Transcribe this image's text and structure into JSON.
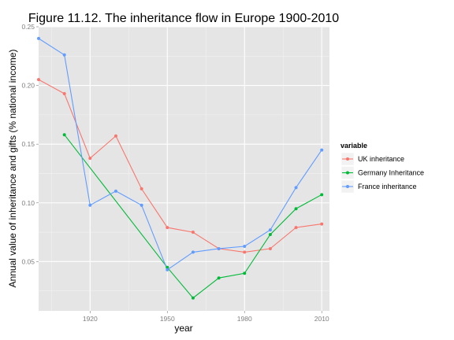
{
  "chart_data": {
    "type": "line",
    "title": "Figure 11.12. The inheritance flow in Europe 1900-2010",
    "xlabel": "year",
    "ylabel": "Annual value of inheritance and gifts (% national income)",
    "xlim": [
      1900,
      2013
    ],
    "ylim": [
      0.008,
      0.25
    ],
    "x_ticks": [
      1920,
      1950,
      1980,
      2010
    ],
    "y_ticks": [
      0.05,
      0.1,
      0.15,
      0.2,
      0.25
    ],
    "y_tick_labels": [
      "0.05",
      "0.10",
      "0.15",
      "0.20",
      "0.25"
    ],
    "grid": true,
    "legend": {
      "title": "variable",
      "position": "right"
    },
    "series": [
      {
        "name": "UK inheritance",
        "color": "#f8766d",
        "x": [
          1900,
          1910,
          1920,
          1930,
          1940,
          1950,
          1960,
          1970,
          1980,
          1990,
          2000,
          2010
        ],
        "values": [
          0.205,
          0.193,
          0.138,
          0.157,
          0.112,
          0.079,
          0.075,
          0.061,
          0.058,
          0.061,
          0.079,
          0.082
        ]
      },
      {
        "name": "Germany Inheritance",
        "color": "#00ba38",
        "x": [
          1910,
          1950,
          1960,
          1970,
          1980,
          1990,
          2000,
          2010
        ],
        "values": [
          0.158,
          0.045,
          0.019,
          0.036,
          0.04,
          0.073,
          0.095,
          0.107
        ]
      },
      {
        "name": "France inheritance",
        "color": "#619cff",
        "x": [
          1900,
          1910,
          1920,
          1930,
          1940,
          1950,
          1960,
          1970,
          1980,
          1990,
          2000,
          2010
        ],
        "values": [
          0.24,
          0.226,
          0.098,
          0.11,
          0.098,
          0.043,
          0.058,
          0.061,
          0.063,
          0.077,
          0.113,
          0.145
        ]
      }
    ]
  }
}
